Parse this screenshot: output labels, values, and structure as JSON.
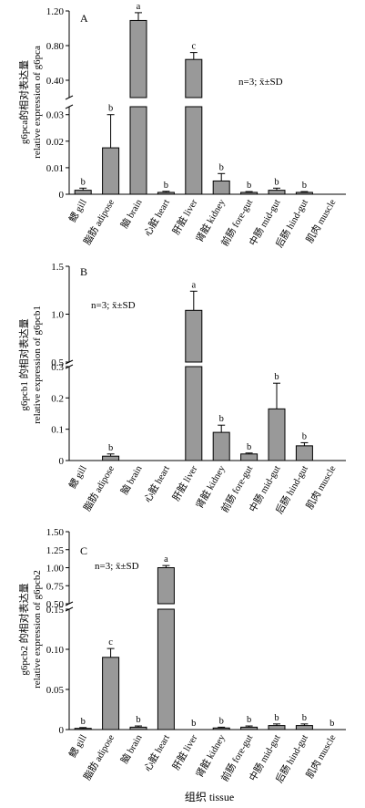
{
  "chart_data": [
    {
      "type": "bar",
      "panel_label": "A",
      "note": "n=3; x̄±SD",
      "ylabel_line1": "g6pca的相对表达量",
      "ylabel_line2": "relative expression of g6pca",
      "categories": [
        "鳃 gill",
        "脂肪 adipose",
        "脑 brain",
        "心脏 heart",
        "肝脏 liver",
        "肾脏 kidney",
        "前肠 fore-gut",
        "中肠 mid-gut",
        "后肠 hind-gut",
        "肌肉 muscle"
      ],
      "values": [
        0.0015,
        0.0175,
        1.09,
        0.0007,
        0.64,
        0.005,
        0.0007,
        0.0015,
        0.0007,
        0
      ],
      "errors": [
        0.0008,
        0.0125,
        0.09,
        0.0004,
        0.08,
        0.0028,
        0.0003,
        0.0008,
        0.0003,
        0
      ],
      "sig_letters": [
        "b",
        "b",
        "a",
        "b",
        "c",
        "b",
        "b",
        "b",
        "b",
        ""
      ],
      "axis_break": true,
      "lower_ylim": [
        0,
        0.033
      ],
      "lower_ticks": [
        "0",
        "0.01",
        "0.02",
        "0.03"
      ],
      "upper_ylim": [
        0.2,
        1.2
      ],
      "upper_ticks": [
        "0.40",
        "0.80",
        "1.20"
      ],
      "lower_tick_values": [
        0,
        0.01,
        0.02,
        0.03
      ],
      "upper_tick_values": [
        0.4,
        0.8,
        1.2
      ],
      "bar_color": "#999999"
    },
    {
      "type": "bar",
      "panel_label": "B",
      "note": "n=3; x̄±SD",
      "ylabel_line1": "g6pcb1 的相对表达量",
      "ylabel_line2": "relative expression of g6pcb1",
      "categories": [
        "鳃 gill",
        "脂肪 adipose",
        "脑 brain",
        "心脏 heart",
        "肝脏 liver",
        "肾脏 kidney",
        "前肠 fore-gut",
        "中肠 mid-gut",
        "后肠 hind-gut",
        "肌肉 muscle"
      ],
      "values": [
        0,
        0.014,
        0,
        0,
        1.04,
        0.09,
        0.021,
        0.165,
        0.047,
        0
      ],
      "errors": [
        0,
        0.007,
        0,
        0,
        0.2,
        0.023,
        0.003,
        0.082,
        0.01,
        0
      ],
      "sig_letters": [
        "",
        "b",
        "",
        "",
        "a",
        "b",
        "b",
        "b",
        "b",
        ""
      ],
      "axis_break": true,
      "lower_ylim": [
        0,
        0.3
      ],
      "lower_ticks": [
        "0",
        "0.1",
        "0.2",
        "0.3"
      ],
      "upper_ylim": [
        0.5,
        1.5
      ],
      "upper_ticks": [
        "0.5",
        "1.0",
        "1.5"
      ],
      "lower_tick_values": [
        0,
        0.1,
        0.2,
        0.3
      ],
      "upper_tick_values": [
        0.5,
        1.0,
        1.5
      ],
      "bar_color": "#999999"
    },
    {
      "type": "bar",
      "panel_label": "C",
      "note": "n=3; x̄±SD",
      "ylabel_line1": "g6pcb2 的相对表达量",
      "ylabel_line2": "relative expression of g6pcb2",
      "categories": [
        "鳃 gill",
        "脂肪 adipose",
        "脑 brain",
        "心脏 heart",
        "肝脏 liver",
        "肾脏 kidney",
        "前肠 fore-gut",
        "中肠 mid-gut",
        "后肠 hind-gut",
        "肌肉 muscle"
      ],
      "values": [
        0.0015,
        0.09,
        0.003,
        1.0,
        0,
        0.002,
        0.003,
        0.005,
        0.005,
        0
      ],
      "errors": [
        0.001,
        0.011,
        0.0015,
        0.03,
        0,
        0.001,
        0.0015,
        0.002,
        0.002,
        0
      ],
      "sig_letters": [
        "b",
        "c",
        "b",
        "a",
        "b",
        "b",
        "b",
        "b",
        "b",
        "b"
      ],
      "axis_break": true,
      "lower_ylim": [
        0,
        0.15
      ],
      "lower_ticks": [
        "0",
        "0.05",
        "0.10",
        "0.15"
      ],
      "upper_ylim": [
        0.5,
        1.5
      ],
      "upper_ticks": [
        "0.50",
        "0.75",
        "1.00",
        "1.25",
        "1.50"
      ],
      "lower_tick_values": [
        0,
        0.05,
        0.1,
        0.15
      ],
      "upper_tick_values": [
        0.5,
        0.75,
        1.0,
        1.25,
        1.5
      ],
      "bar_color": "#999999"
    }
  ],
  "xlabel": "组织 tissue"
}
